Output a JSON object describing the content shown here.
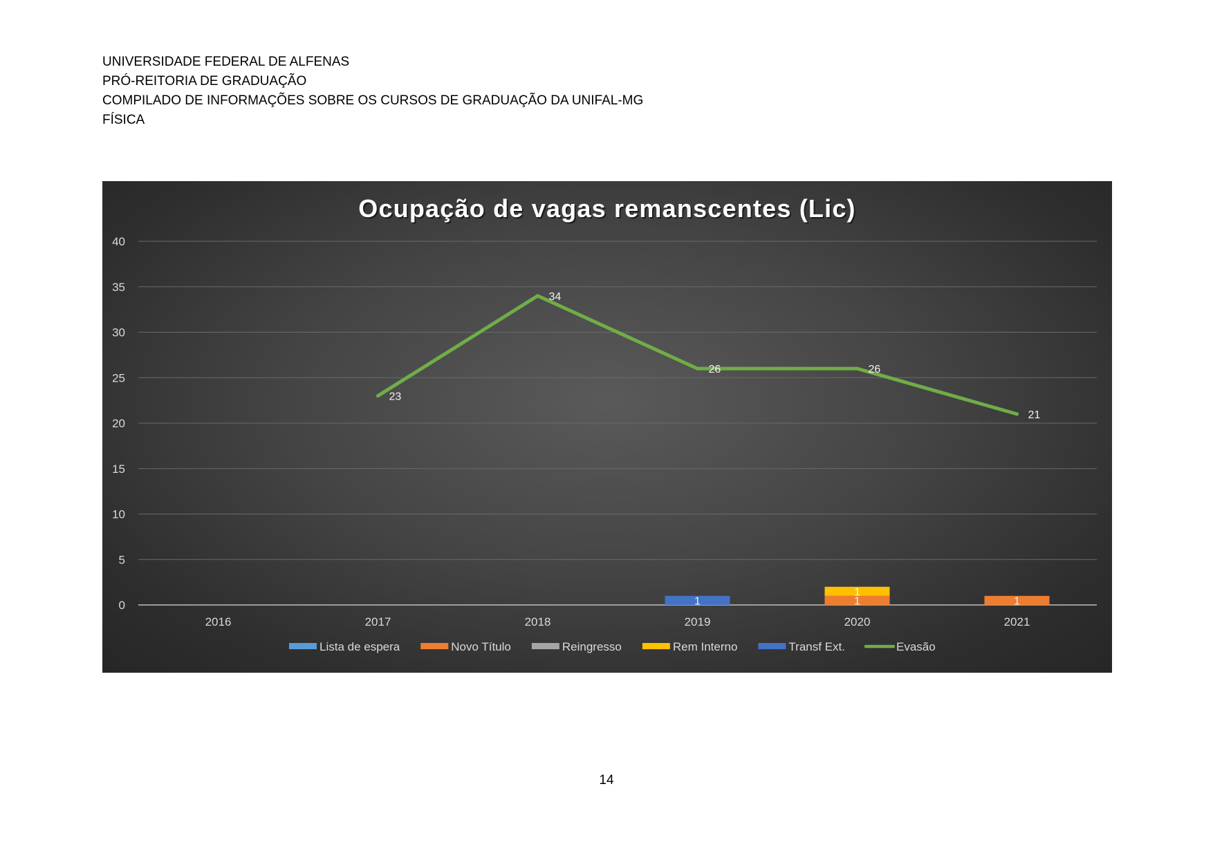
{
  "document": {
    "header_lines": [
      "UNIVERSIDADE FEDERAL DE ALFENAS",
      "PRÓ-REITORIA DE GRADUAÇÃO",
      "COMPILADO DE INFORMAÇÕES SOBRE OS CURSOS DE GRADUAÇÃO DA UNIFAL-MG",
      "FÍSICA"
    ],
    "page_number": "14"
  },
  "chart_data": {
    "type": "bar",
    "title": "Ocupação de vagas remanscentes (Lic)",
    "categories": [
      "2016",
      "2017",
      "2018",
      "2019",
      "2020",
      "2021"
    ],
    "ylim": [
      0,
      40
    ],
    "yticks": [
      0,
      5,
      10,
      15,
      20,
      25,
      30,
      35,
      40
    ],
    "grid": true,
    "legend_position": "bottom",
    "stacked": true,
    "series": [
      {
        "name": "Lista de espera",
        "kind": "bar",
        "color": "#5b9bd5",
        "values": [
          null,
          null,
          null,
          null,
          null,
          null
        ]
      },
      {
        "name": "Novo Título",
        "kind": "bar",
        "color": "#ed7d31",
        "values": [
          null,
          null,
          null,
          null,
          1,
          1
        ]
      },
      {
        "name": "Reingresso",
        "kind": "bar",
        "color": "#a5a5a5",
        "values": [
          null,
          null,
          null,
          null,
          null,
          null
        ]
      },
      {
        "name": "Rem Interno",
        "kind": "bar",
        "color": "#ffc000",
        "values": [
          null,
          null,
          null,
          null,
          1,
          null
        ]
      },
      {
        "name": "Transf Ext.",
        "kind": "bar",
        "color": "#4472c4",
        "values": [
          null,
          null,
          null,
          1,
          null,
          null
        ]
      },
      {
        "name": "Evasão",
        "kind": "line",
        "color": "#70ad47",
        "values": [
          null,
          23,
          34,
          26,
          26,
          21
        ]
      }
    ]
  }
}
